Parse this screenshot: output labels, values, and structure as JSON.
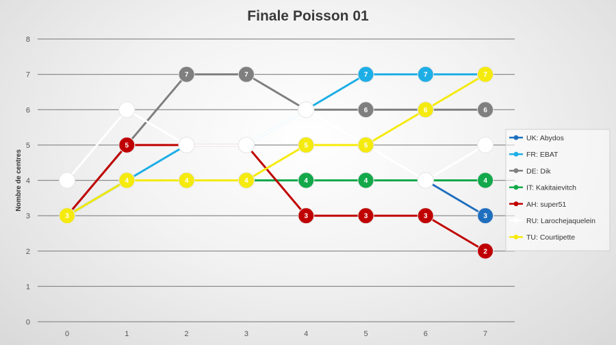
{
  "chart_data": {
    "type": "line",
    "title": "Finale Poisson 01",
    "xlabel": "",
    "ylabel": "Nombre de centres",
    "x": [
      0,
      1,
      2,
      3,
      4,
      5,
      6,
      7
    ],
    "ylim": [
      0,
      8
    ],
    "yticks": [
      0,
      1,
      2,
      3,
      4,
      5,
      6,
      7,
      8
    ],
    "grid": true,
    "legend_position": "right",
    "series": [
      {
        "name": "UK: Abydos",
        "color": "#1f6fbf",
        "values": [
          3,
          4,
          4,
          4,
          4,
          4,
          4,
          3
        ],
        "labels": [
          null,
          null,
          null,
          null,
          null,
          null,
          null,
          "3"
        ]
      },
      {
        "name": "FR: EBAT",
        "color": "#1eaee6",
        "values": [
          3,
          4,
          5,
          5,
          6,
          7,
          7,
          7
        ],
        "labels": [
          null,
          null,
          null,
          null,
          null,
          "7",
          "7",
          null
        ]
      },
      {
        "name": "DE: Dik",
        "color": "#7f7f7f",
        "values": [
          3,
          5,
          7,
          7,
          6,
          6,
          6,
          6
        ],
        "labels": [
          null,
          null,
          "7",
          "7",
          null,
          "6",
          null,
          "6"
        ]
      },
      {
        "name": "IT: Kakitaievitch",
        "color": "#13a84a",
        "values": [
          3,
          4,
          4,
          4,
          4,
          4,
          4,
          4
        ],
        "labels": [
          null,
          null,
          null,
          null,
          "4",
          "4",
          null,
          "4"
        ]
      },
      {
        "name": "AH: super51",
        "color": "#c00000",
        "values": [
          3,
          5,
          5,
          5,
          3,
          3,
          3,
          2
        ],
        "labels": [
          null,
          "5",
          null,
          null,
          "3",
          "3",
          "3",
          "2"
        ]
      },
      {
        "name": "RU: Larochejaquelein",
        "color": "#ffffff",
        "values": [
          4,
          6,
          5,
          5,
          6,
          5,
          4,
          5
        ],
        "labels": [
          null,
          null,
          null,
          null,
          null,
          null,
          null,
          null
        ]
      },
      {
        "name": "TU: Courtipette",
        "color": "#f5ea0d",
        "values": [
          3,
          4,
          4,
          4,
          5,
          5,
          6,
          7
        ],
        "labels": [
          "3",
          "4",
          "4",
          "4",
          "5",
          "5",
          "6",
          "7"
        ]
      }
    ]
  }
}
